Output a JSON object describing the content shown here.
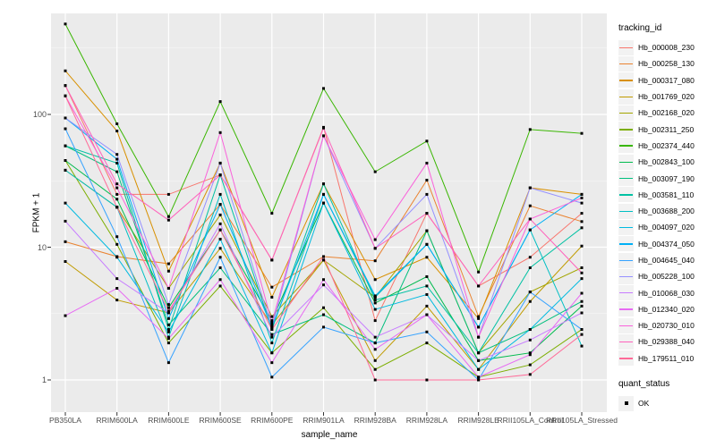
{
  "chart_data": {
    "type": "line",
    "title": "",
    "xlabel": "sample_name",
    "ylabel": "FPKM + 1",
    "y_scale": "log10",
    "yticks": [
      1,
      10,
      100
    ],
    "ylim": [
      0.55,
      575
    ],
    "grid": "on",
    "panel_bg": "#ebebeb",
    "grid_color": "#ffffff",
    "tick_text_color": "#4d4d4d",
    "marker_color": "#000000",
    "legend_position": "right",
    "legend_title": "tracking_id",
    "categories": [
      "PB350LA",
      "RRIM600LA",
      "RRIM600LE",
      "RRIM600SE",
      "RRIM600PE",
      "RRIM901LA",
      "RRIM928BA",
      "RRIM928LA",
      "RRIM928LE",
      "RRII105LA_Control",
      "RRII105LA_Stressed"
    ],
    "series": [
      {
        "name": "Hb_000008_230",
        "color": "#F8766D",
        "values": [
          165,
          25,
          25,
          35,
          8.0,
          80,
          2.8,
          18,
          5.1,
          8.4,
          18
        ]
      },
      {
        "name": "Hb_000258_130",
        "color": "#EA8331",
        "values": [
          11,
          8.5,
          7.5,
          21,
          5.0,
          8.5,
          7.9,
          32,
          3.0,
          20.5,
          15.6
        ]
      },
      {
        "name": "Hb_000317_080",
        "color": "#D89000",
        "values": [
          213,
          75,
          6.6,
          43,
          4.2,
          30,
          5.7,
          8.4,
          2.9,
          28,
          25
        ]
      },
      {
        "name": "Hb_001769_020",
        "color": "#C09B00",
        "values": [
          7.8,
          4.0,
          3.2,
          9.8,
          2.6,
          8.0,
          1.4,
          3.6,
          1.2,
          3.9,
          10.2
        ]
      },
      {
        "name": "Hb_002168_020",
        "color": "#A3A500",
        "values": [
          38,
          20,
          4.9,
          17.5,
          3.0,
          8.0,
          4.2,
          13.3,
          1.6,
          4.6,
          7.0
        ]
      },
      {
        "name": "Hb_002311_250",
        "color": "#7CAE00",
        "values": [
          45,
          10.5,
          1.9,
          5.1,
          1.6,
          3.5,
          1.2,
          1.9,
          1.05,
          1.3,
          2.4
        ]
      },
      {
        "name": "Hb_002374_440",
        "color": "#39B600",
        "values": [
          480,
          85,
          17,
          125,
          18,
          157,
          37,
          63,
          6.5,
          77,
          72
        ]
      },
      {
        "name": "Hb_002843_100",
        "color": "#00BB4E",
        "values": [
          45,
          23,
          3.5,
          13.5,
          2.8,
          21.5,
          3.8,
          6.0,
          1.4,
          1.6,
          3.6
        ]
      },
      {
        "name": "Hb_003097_190",
        "color": "#00BF7D",
        "values": [
          58,
          37,
          2.6,
          7.0,
          2.2,
          3.1,
          1.9,
          13.3,
          1.6,
          2.4,
          3.9
        ]
      },
      {
        "name": "Hb_003581_110",
        "color": "#00C1A3",
        "values": [
          58,
          43,
          2.4,
          35,
          2.4,
          30,
          4.0,
          5.1,
          1.6,
          7.0,
          14
        ]
      },
      {
        "name": "Hb_003688_200",
        "color": "#00BFC4",
        "values": [
          38,
          20,
          2.1,
          25,
          1.9,
          25,
          4.2,
          10.5,
          2.5,
          13.5,
          1.8
        ]
      },
      {
        "name": "Hb_004097_020",
        "color": "#00BAE0",
        "values": [
          21.5,
          8.4,
          2.3,
          11.5,
          1.6,
          21.5,
          3.4,
          4.4,
          1.2,
          2.4,
          5.8
        ]
      },
      {
        "name": "Hb_004374_050",
        "color": "#00B0F6",
        "values": [
          94,
          46,
          2.9,
          21,
          2.5,
          25,
          4.3,
          10.5,
          2.5,
          13.5,
          25
        ]
      },
      {
        "name": "Hb_004645_040",
        "color": "#35A2FF",
        "values": [
          78,
          12,
          1.35,
          8.4,
          1.05,
          2.5,
          1.9,
          2.3,
          1.0,
          4.6,
          2.4
        ]
      },
      {
        "name": "Hb_005228_100",
        "color": "#9590FF",
        "values": [
          94,
          50,
          3.7,
          43,
          2.5,
          69,
          9.8,
          25,
          2.1,
          28,
          21.5
        ]
      },
      {
        "name": "Hb_010068_030",
        "color": "#C77CFF",
        "values": [
          15.7,
          5.8,
          3.2,
          15,
          2.1,
          5.2,
          2.1,
          3.1,
          1.4,
          2.0,
          3.2
        ]
      },
      {
        "name": "Hb_012340_020",
        "color": "#E76BF3",
        "values": [
          3.05,
          4.9,
          2.05,
          5.7,
          1.35,
          5.7,
          1.7,
          3.1,
          1.05,
          1.55,
          4.5
        ]
      },
      {
        "name": "Hb_020730_010",
        "color": "#FA62DB",
        "values": [
          138,
          28,
          4.9,
          73,
          2.7,
          69,
          11.4,
          43,
          2.1,
          16.3,
          23.5
        ]
      },
      {
        "name": "Hb_029388_040",
        "color": "#FF62BC",
        "values": [
          165,
          30,
          16,
          35,
          8.0,
          79,
          9.8,
          18,
          5.1,
          16.3,
          6.4
        ]
      },
      {
        "name": "Hb_179511_010",
        "color": "#FF6A98",
        "values": [
          138,
          20,
          3.3,
          13.5,
          2.4,
          8.5,
          1.0,
          1.0,
          1.0,
          1.1,
          2.2
        ]
      }
    ]
  },
  "legend2": {
    "title": "quant_status",
    "items": [
      {
        "label": "OK"
      }
    ]
  }
}
